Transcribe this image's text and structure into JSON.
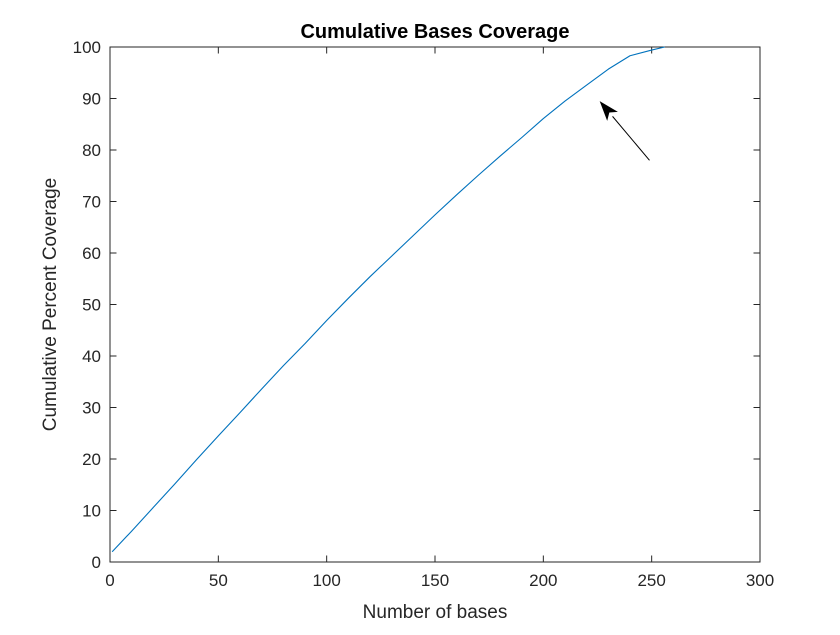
{
  "chart_data": {
    "type": "line",
    "title": "Cumulative Bases Coverage",
    "xlabel": "Number of bases",
    "ylabel": "Cumulative Percent Coverage",
    "xlim": [
      0,
      300
    ],
    "ylim": [
      0,
      100
    ],
    "xticks": [
      0,
      50,
      100,
      150,
      200,
      250,
      300
    ],
    "yticks": [
      0,
      10,
      20,
      30,
      40,
      50,
      60,
      70,
      80,
      90,
      100
    ],
    "grid": false,
    "series": [
      {
        "color": "#0072BD",
        "x": [
          1,
          10,
          20,
          30,
          40,
          50,
          60,
          70,
          80,
          90,
          100,
          110,
          120,
          130,
          140,
          150,
          160,
          170,
          180,
          190,
          200,
          210,
          220,
          230,
          240,
          250,
          256
        ],
        "y": [
          2.0,
          6.0,
          10.6,
          15.2,
          19.9,
          24.5,
          29.0,
          33.6,
          38.1,
          42.4,
          46.9,
          51.2,
          55.4,
          59.4,
          63.4,
          67.4,
          71.3,
          75.1,
          78.8,
          82.4,
          86.1,
          89.5,
          92.6,
          95.7,
          98.3,
          99.4,
          100.0
        ]
      }
    ],
    "annotations": [
      {
        "type": "arrow",
        "from": [
          249,
          78
        ],
        "to": [
          226,
          89.5
        ],
        "color": "#000000"
      }
    ]
  }
}
